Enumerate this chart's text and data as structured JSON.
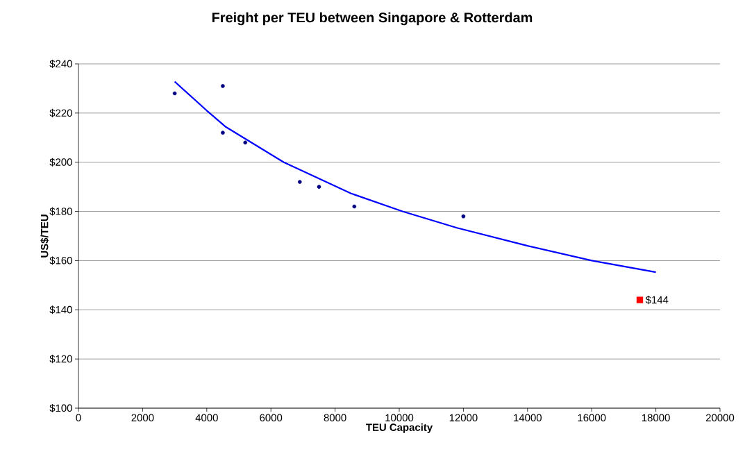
{
  "chart_data": {
    "type": "scatter",
    "title": "Freight per TEU between Singapore & Rotterdam",
    "xlabel": "TEU Capacity",
    "ylabel": "US$/TEU",
    "xlim": [
      0,
      20000
    ],
    "xticks": [
      0,
      2000,
      4000,
      6000,
      8000,
      10000,
      12000,
      14000,
      16000,
      18000,
      20000
    ],
    "ylim": [
      100,
      240
    ],
    "yticks": [
      {
        "value": 100,
        "label": "$100"
      },
      {
        "value": 120,
        "label": "$120"
      },
      {
        "value": 140,
        "label": "$140"
      },
      {
        "value": 160,
        "label": "$160"
      },
      {
        "value": 180,
        "label": "$180"
      },
      {
        "value": 200,
        "label": "$200"
      },
      {
        "value": 220,
        "label": "$220"
      },
      {
        "value": 240,
        "label": "$240"
      }
    ],
    "grid": "y",
    "series": [
      {
        "marker": "circle",
        "color": "#000080",
        "x": [
          3000,
          4500,
          4500,
          5200,
          6900,
          7500,
          8600,
          12000
        ],
        "values": [
          228,
          231,
          212,
          208,
          192,
          190,
          182,
          178
        ]
      },
      {
        "type": "line",
        "marker": "none",
        "color": "#0000ff",
        "x": [
          3000,
          4000,
          4600,
          6400,
          8500,
          10100,
          11800,
          14000,
          16000,
          18000
        ],
        "values": [
          232.8,
          221,
          214.3,
          200,
          187.3,
          180,
          173.3,
          166,
          160,
          155.3
        ]
      },
      {
        "marker": "square",
        "color": "#ff0000",
        "x": [
          17500
        ],
        "values": [
          144
        ],
        "value_labels": [
          "$144"
        ]
      }
    ]
  }
}
